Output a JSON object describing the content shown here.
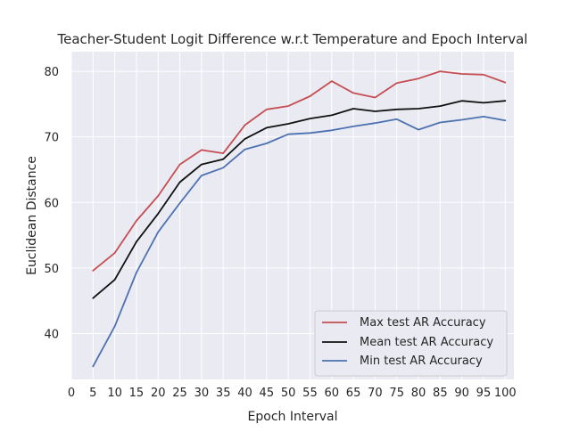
{
  "chart_data": {
    "type": "line",
    "title": "Teacher-Student Logit Difference w.r.t Temperature and Epoch Interval",
    "xlabel": "Epoch Interval",
    "ylabel": "Euclidean Distance",
    "xlim": [
      0,
      102
    ],
    "ylim": [
      33,
      83
    ],
    "x_ticks": [
      0,
      5,
      10,
      15,
      20,
      25,
      30,
      35,
      40,
      45,
      50,
      55,
      60,
      65,
      70,
      75,
      80,
      85,
      90,
      95,
      100
    ],
    "y_ticks": [
      40,
      50,
      60,
      70,
      80
    ],
    "grid": true,
    "legend_position": "lower-right",
    "x": [
      5,
      10,
      15,
      20,
      25,
      30,
      35,
      40,
      45,
      50,
      55,
      60,
      65,
      70,
      75,
      80,
      85,
      90,
      95,
      100
    ],
    "series": [
      {
        "name": "Max test AR Accuracy",
        "color": "#c44e52",
        "values": [
          49.6,
          52.3,
          57.2,
          61.0,
          65.8,
          68.0,
          67.5,
          71.8,
          74.2,
          74.7,
          76.2,
          78.5,
          76.7,
          76.0,
          78.2,
          78.9,
          80.0,
          79.6,
          79.5,
          78.3
        ]
      },
      {
        "name": "Mean test AR Accuracy",
        "color": "#111111",
        "values": [
          45.4,
          48.2,
          54.0,
          58.3,
          63.1,
          65.8,
          66.6,
          69.7,
          71.4,
          72.0,
          72.8,
          73.3,
          74.3,
          73.9,
          74.2,
          74.3,
          74.7,
          75.5,
          75.2,
          75.5
        ]
      },
      {
        "name": "Min test AR Accuracy",
        "color": "#4c72b0",
        "values": [
          35.0,
          41.1,
          49.3,
          55.5,
          59.9,
          64.1,
          65.3,
          68.1,
          69.0,
          70.4,
          70.6,
          71.0,
          71.6,
          72.1,
          72.7,
          71.1,
          72.2,
          72.6,
          73.1,
          72.5
        ]
      }
    ]
  }
}
